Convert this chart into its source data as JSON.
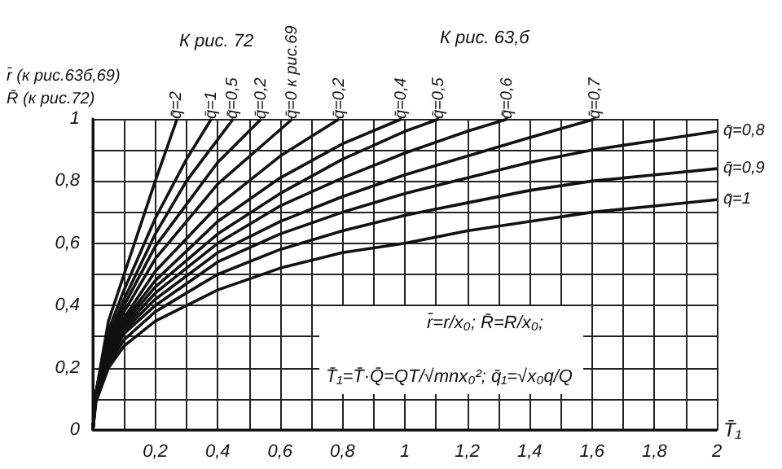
{
  "chart_data": {
    "type": "line",
    "xlabel": "T̄₁",
    "ylabel": "r̄ (к рис.63б,69)\nR̄ (к рис.72)",
    "annotations": [
      "К рис. 72",
      "К рис. 63,б",
      "r̄=r/x₀; R̄=R/x₀;",
      "T̄₁=T̄·Q̄=QT/√mnx₀²; q̄₁=√x₀q/Q"
    ],
    "xlim": [
      0,
      2
    ],
    "ylim": [
      0,
      1
    ],
    "xticks": [
      {
        "value": 0,
        "label": null
      },
      {
        "value": 0.1,
        "label": null
      },
      {
        "value": 0.2,
        "label": "0,2"
      },
      {
        "value": 0.3,
        "label": null
      },
      {
        "value": 0.4,
        "label": "0,4"
      },
      {
        "value": 0.5,
        "label": null
      },
      {
        "value": 0.6,
        "label": "0,6"
      },
      {
        "value": 0.7,
        "label": null
      },
      {
        "value": 0.8,
        "label": "0,8"
      },
      {
        "value": 0.9,
        "label": null
      },
      {
        "value": 1,
        "label": "1"
      },
      {
        "value": 1.1,
        "label": null
      },
      {
        "value": 1.2,
        "label": "1,2"
      },
      {
        "value": 1.3,
        "label": null
      },
      {
        "value": 1.4,
        "label": "1,4"
      },
      {
        "value": 1.5,
        "label": null
      },
      {
        "value": 1.6,
        "label": "1,6"
      },
      {
        "value": 1.7,
        "label": null
      },
      {
        "value": 1.8,
        "label": "1,8"
      },
      {
        "value": 1.9,
        "label": null
      },
      {
        "value": 2,
        "label": "2"
      }
    ],
    "yticks": [
      0,
      {
        "value": 0.1,
        "label": null
      },
      {
        "value": 0.2,
        "label": "0,2"
      },
      {
        "value": 0.3,
        "label": null
      },
      {
        "value": 0.4,
        "label": "0,4"
      },
      {
        "value": 0.5,
        "label": null
      },
      {
        "value": 0.6,
        "label": "0,6"
      },
      {
        "value": 0.7,
        "label": null
      },
      {
        "value": 0.8,
        "label": "0,8"
      },
      {
        "value": 0.9,
        "label": null
      },
      1
    ],
    "grid": true,
    "legend": false,
    "marker": "none",
    "line_style": "solid",
    "series": [
      {
        "name": "q̄=2",
        "color": "#111111",
        "x": [
          0,
          0.01,
          0.05,
          0.1,
          0.2,
          0.27
        ],
        "values": [
          0,
          0.12,
          0.35,
          0.5,
          0.8,
          1
        ]
      },
      {
        "name": "q̄=1",
        "color": "#111111",
        "x": [
          0,
          0.01,
          0.05,
          0.1,
          0.2,
          0.3,
          0.38
        ],
        "values": [
          0,
          0.12,
          0.32,
          0.45,
          0.68,
          0.87,
          1
        ]
      },
      {
        "name": "q̄=0,5",
        "color": "#111111",
        "x": [
          0,
          0.01,
          0.05,
          0.1,
          0.2,
          0.3,
          0.45
        ],
        "values": [
          0,
          0.12,
          0.3,
          0.42,
          0.63,
          0.8,
          1
        ]
      },
      {
        "name": "q̄=0,2",
        "color": "#111111",
        "x": [
          0,
          0.01,
          0.05,
          0.1,
          0.2,
          0.4,
          0.54
        ],
        "values": [
          0,
          0.12,
          0.29,
          0.4,
          0.59,
          0.86,
          1
        ]
      },
      {
        "name": "q̄=0 к рис.69",
        "color": "#111111",
        "x": [
          0,
          0.01,
          0.05,
          0.1,
          0.2,
          0.4,
          0.64
        ],
        "values": [
          0,
          0.12,
          0.28,
          0.38,
          0.55,
          0.79,
          1
        ]
      },
      {
        "name": "q̄=0,2",
        "color": "#111111",
        "x": [
          0,
          0.01,
          0.05,
          0.1,
          0.2,
          0.4,
          0.6,
          0.79
        ],
        "values": [
          0,
          0.12,
          0.27,
          0.36,
          0.51,
          0.72,
          0.88,
          1
        ]
      },
      {
        "name": "q̄=0,4",
        "color": "#111111",
        "x": [
          0,
          0.01,
          0.05,
          0.1,
          0.2,
          0.4,
          0.6,
          0.8,
          0.99
        ],
        "values": [
          0,
          0.12,
          0.26,
          0.35,
          0.48,
          0.67,
          0.81,
          0.92,
          1
        ]
      },
      {
        "name": "q̄=0,5",
        "color": "#111111",
        "x": [
          0,
          0.01,
          0.05,
          0.1,
          0.2,
          0.4,
          0.6,
          0.8,
          1,
          1.11
        ],
        "values": [
          0,
          0.12,
          0.25,
          0.34,
          0.46,
          0.63,
          0.76,
          0.87,
          0.96,
          1
        ]
      },
      {
        "name": "q̄=0,6",
        "color": "#111111",
        "x": [
          0,
          0.01,
          0.05,
          0.1,
          0.2,
          0.4,
          0.6,
          0.8,
          1,
          1.2,
          1.33
        ],
        "values": [
          0,
          0.12,
          0.24,
          0.33,
          0.44,
          0.6,
          0.72,
          0.81,
          0.89,
          0.96,
          1
        ]
      },
      {
        "name": "q̄=0,7",
        "color": "#111111",
        "x": [
          0,
          0.01,
          0.05,
          0.1,
          0.2,
          0.4,
          0.6,
          0.8,
          1,
          1.2,
          1.4,
          1.61
        ],
        "values": [
          0,
          0.11,
          0.23,
          0.32,
          0.42,
          0.57,
          0.67,
          0.75,
          0.82,
          0.88,
          0.94,
          1
        ]
      },
      {
        "name": "q̄=0,8",
        "color": "#111111",
        "x": [
          0,
          0.01,
          0.05,
          0.1,
          0.2,
          0.4,
          0.6,
          0.8,
          1,
          1.2,
          1.4,
          1.6,
          1.8,
          2
        ],
        "values": [
          0,
          0.11,
          0.22,
          0.31,
          0.4,
          0.54,
          0.63,
          0.7,
          0.76,
          0.81,
          0.86,
          0.9,
          0.93,
          0.96
        ]
      },
      {
        "name": "q̄=0,9",
        "color": "#111111",
        "x": [
          0,
          0.01,
          0.05,
          0.1,
          0.2,
          0.4,
          0.6,
          0.8,
          1,
          1.2,
          1.4,
          1.6,
          1.8,
          2
        ],
        "values": [
          0,
          0.1,
          0.21,
          0.29,
          0.38,
          0.5,
          0.58,
          0.64,
          0.69,
          0.73,
          0.77,
          0.8,
          0.82,
          0.84
        ]
      },
      {
        "name": "q̄=1",
        "color": "#111111",
        "x": [
          0,
          0.01,
          0.05,
          0.1,
          0.2,
          0.4,
          0.6,
          0.8,
          1,
          1.2,
          1.4,
          1.6,
          1.8,
          2
        ],
        "values": [
          0,
          0.09,
          0.2,
          0.27,
          0.35,
          0.45,
          0.52,
          0.57,
          0.6,
          0.64,
          0.67,
          0.7,
          0.72,
          0.74
        ]
      }
    ]
  }
}
